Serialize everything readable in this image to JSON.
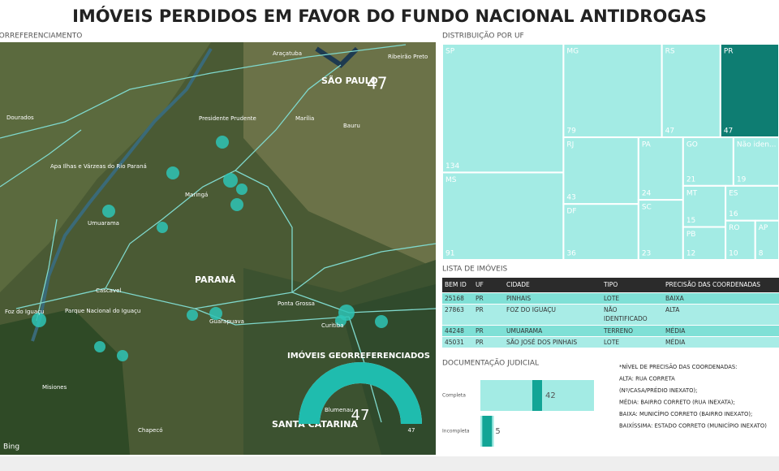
{
  "title": "IMÓVEIS PERDIDOS EM FAVOR DO FUNDO NACIONAL ANTIDROGAS",
  "map": {
    "title": "GEORREFERENCIAMENTO",
    "places": [
      "SÃO PAULO",
      "PARANÁ",
      "SANTA CATARINA",
      "Dourados",
      "Presidente Prudente",
      "Maringá",
      "Cascavel",
      "Ponta Grossa",
      "Curitiba",
      "Marília",
      "Bauru",
      "Araçatuba",
      "Ribeirão Preto",
      "Chapecó",
      "Blumenau",
      "Misiones",
      "Parque Nacional do Iguaçu",
      "Apa Ilhas e Várzeas do Rio Paraná",
      "Umuarama",
      "Foz do Iguaçu",
      "Guarapuava"
    ],
    "cluster": "47",
    "attribution": "Bing"
  },
  "chart_data": [
    {
      "type": "treemap",
      "title": "DISTRIBUIÇÃO POR UF",
      "categories": [
        "SP",
        "MS",
        "MG",
        "RS",
        "PR",
        "RJ",
        "DF",
        "PA",
        "SC",
        "GO",
        "Não iden...",
        "MT",
        "PB",
        "ES",
        "RO",
        "AP"
      ],
      "values": [
        134,
        91,
        79,
        47,
        47,
        43,
        36,
        24,
        23,
        21,
        19,
        15,
        12,
        16,
        10,
        8
      ],
      "color": "#a3ebe4",
      "highlight": "PR",
      "highlight_color": "#0e7d72"
    },
    {
      "type": "bar",
      "title": "DOCUMENTAÇÃO JUDICIAL",
      "categories": [
        "Completa",
        "Incompleta"
      ],
      "values": [
        42,
        5
      ],
      "color": "#a3ebe4",
      "marker_color": "#12a596"
    },
    {
      "type": "gauge",
      "title": "IMÓVEIS GEORREFERENCIADOS",
      "value": 47,
      "max": 47,
      "color": "#1fbcae"
    }
  ],
  "table": {
    "title": "LISTA DE IMÓVEIS",
    "header": [
      "BEM ID",
      "UF",
      "CIDADE",
      "TIPO",
      "PRECISÃO DAS COORDENADAS"
    ],
    "rows": [
      [
        "25168",
        "PR",
        "PINHAIS",
        "LOTE",
        "BAIXA"
      ],
      [
        "27863",
        "PR",
        "FOZ DO IGUAÇU",
        "NÃO IDENTIFICADO",
        "ALTA"
      ],
      [
        "44248",
        "PR",
        "UMUARAMA",
        "TERRENO",
        "MÉDIA"
      ],
      [
        "45031",
        "PR",
        "SÃO JOSÉ DOS PINHAIS",
        "LOTE",
        "MÉDIA"
      ]
    ]
  },
  "notes": [
    "*NÍVEL DE PRECISÃO DAS COORDENADAS:",
    "ALTA: RUA CORRETA",
    "(Nº/CASA/PRÉDIO INEXATO);",
    "MÉDIA: BAIRRO CORRETO (RUA INEXATA);",
    "BAIXA: MUNICÍPIO CORRETO (BAIRRO INEXATO);",
    "BAIXÍSSIMA: ESTADO CORRETO (MUNICÍPIO INEXATO)"
  ]
}
